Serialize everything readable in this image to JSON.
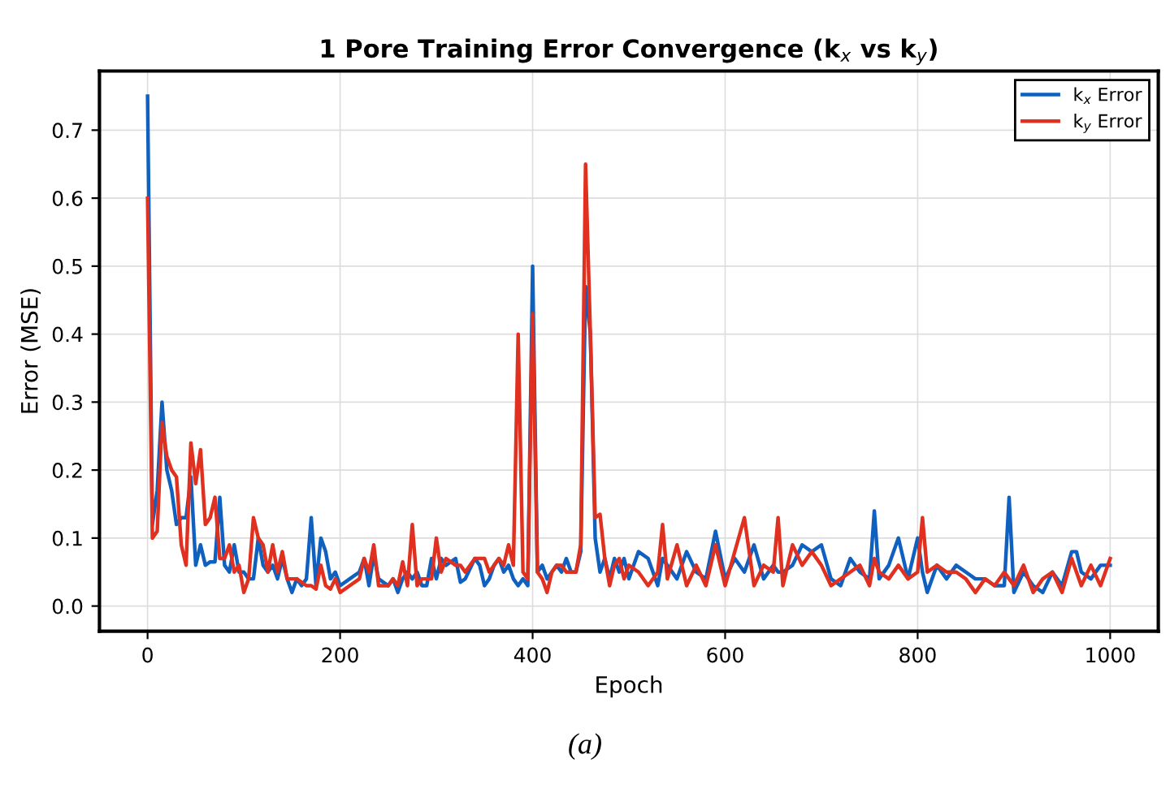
{
  "chart_data": {
    "type": "line",
    "title": "1 Pore Training Error Convergence (k$_{x}$ vs k$_{y}$)",
    "xlabel": "Epoch",
    "ylabel": "Error (MSE)",
    "annotations": [
      "(a)"
    ],
    "xlim": [
      -50,
      1050
    ],
    "xticks": [
      0,
      200,
      400,
      600,
      800,
      1000
    ],
    "ylim": [
      -0.037,
      0.787
    ],
    "yticks": [
      {
        "value": 0.0,
        "label": "0.0"
      },
      0.1,
      0.2,
      0.3,
      0.4,
      0.5,
      0.6,
      0.7
    ],
    "grid": true,
    "legend": "top right",
    "line_style": "solid",
    "x": [
      0,
      5,
      10,
      15,
      20,
      25,
      30,
      35,
      40,
      45,
      50,
      55,
      60,
      65,
      70,
      75,
      80,
      85,
      90,
      95,
      100,
      105,
      110,
      115,
      120,
      125,
      130,
      135,
      140,
      145,
      150,
      155,
      160,
      165,
      170,
      175,
      180,
      185,
      190,
      195,
      200,
      210,
      220,
      225,
      230,
      235,
      240,
      250,
      255,
      260,
      265,
      270,
      275,
      280,
      285,
      290,
      295,
      300,
      305,
      310,
      320,
      325,
      330,
      340,
      345,
      350,
      355,
      360,
      365,
      370,
      375,
      380,
      385,
      390,
      395,
      400,
      405,
      410,
      415,
      420,
      425,
      430,
      435,
      440,
      445,
      450,
      455,
      460,
      465,
      470,
      475,
      480,
      485,
      490,
      495,
      500,
      510,
      520,
      530,
      535,
      540,
      550,
      560,
      570,
      580,
      590,
      600,
      610,
      620,
      630,
      640,
      650,
      655,
      660,
      670,
      680,
      690,
      700,
      710,
      720,
      730,
      740,
      750,
      755,
      760,
      770,
      780,
      790,
      800,
      805,
      810,
      820,
      830,
      840,
      850,
      860,
      870,
      880,
      890,
      895,
      900,
      910,
      920,
      930,
      940,
      950,
      960,
      965,
      970,
      980,
      990,
      1000
    ],
    "series": [
      {
        "name": "k$_{x}$ Error",
        "color": "#1060c0",
        "values": [
          0.75,
          0.12,
          0.17,
          0.3,
          0.2,
          0.17,
          0.12,
          0.13,
          0.13,
          0.19,
          0.06,
          0.09,
          0.06,
          0.065,
          0.065,
          0.16,
          0.06,
          0.05,
          0.09,
          0.05,
          0.05,
          0.04,
          0.04,
          0.1,
          0.06,
          0.05,
          0.06,
          0.04,
          0.07,
          0.04,
          0.02,
          0.04,
          0.03,
          0.04,
          0.13,
          0.03,
          0.1,
          0.08,
          0.04,
          0.05,
          0.03,
          0.04,
          0.05,
          0.07,
          0.03,
          0.075,
          0.04,
          0.03,
          0.04,
          0.02,
          0.04,
          0.05,
          0.04,
          0.05,
          0.03,
          0.03,
          0.07,
          0.04,
          0.07,
          0.06,
          0.07,
          0.035,
          0.04,
          0.07,
          0.06,
          0.03,
          0.04,
          0.06,
          0.07,
          0.05,
          0.06,
          0.04,
          0.03,
          0.04,
          0.03,
          0.5,
          0.05,
          0.06,
          0.04,
          0.05,
          0.06,
          0.05,
          0.07,
          0.05,
          0.05,
          0.08,
          0.47,
          0.4,
          0.1,
          0.05,
          0.07,
          0.04,
          0.07,
          0.05,
          0.07,
          0.04,
          0.08,
          0.07,
          0.03,
          0.07,
          0.06,
          0.04,
          0.08,
          0.05,
          0.04,
          0.11,
          0.04,
          0.07,
          0.05,
          0.09,
          0.04,
          0.06,
          0.05,
          0.05,
          0.06,
          0.09,
          0.08,
          0.09,
          0.04,
          0.03,
          0.07,
          0.05,
          0.04,
          0.14,
          0.04,
          0.06,
          0.1,
          0.04,
          0.1,
          0.05,
          0.02,
          0.06,
          0.04,
          0.06,
          0.05,
          0.04,
          0.04,
          0.03,
          0.03,
          0.16,
          0.02,
          0.05,
          0.03,
          0.02,
          0.05,
          0.03,
          0.08,
          0.08,
          0.05,
          0.04,
          0.06,
          0.06
        ]
      },
      {
        "name": "k$_{y}$ Error",
        "color": "#e03020",
        "values": [
          0.6,
          0.1,
          0.11,
          0.27,
          0.22,
          0.2,
          0.19,
          0.09,
          0.06,
          0.24,
          0.18,
          0.23,
          0.12,
          0.13,
          0.16,
          0.07,
          0.07,
          0.09,
          0.05,
          0.06,
          0.02,
          0.04,
          0.13,
          0.1,
          0.09,
          0.05,
          0.09,
          0.05,
          0.08,
          0.04,
          0.04,
          0.04,
          0.035,
          0.03,
          0.03,
          0.025,
          0.06,
          0.03,
          0.025,
          0.04,
          0.02,
          0.03,
          0.04,
          0.07,
          0.05,
          0.09,
          0.03,
          0.03,
          0.04,
          0.03,
          0.065,
          0.03,
          0.12,
          0.03,
          0.04,
          0.04,
          0.04,
          0.1,
          0.05,
          0.07,
          0.06,
          0.06,
          0.05,
          0.07,
          0.07,
          0.07,
          0.05,
          0.06,
          0.07,
          0.06,
          0.09,
          0.06,
          0.4,
          0.05,
          0.04,
          0.43,
          0.05,
          0.04,
          0.02,
          0.05,
          0.06,
          0.06,
          0.05,
          0.05,
          0.05,
          0.09,
          0.65,
          0.4,
          0.13,
          0.135,
          0.07,
          0.03,
          0.06,
          0.07,
          0.04,
          0.06,
          0.05,
          0.03,
          0.05,
          0.12,
          0.04,
          0.09,
          0.03,
          0.06,
          0.03,
          0.09,
          0.03,
          0.08,
          0.13,
          0.03,
          0.06,
          0.05,
          0.13,
          0.03,
          0.09,
          0.06,
          0.08,
          0.06,
          0.03,
          0.04,
          0.05,
          0.06,
          0.03,
          0.07,
          0.05,
          0.04,
          0.06,
          0.04,
          0.05,
          0.13,
          0.05,
          0.06,
          0.05,
          0.05,
          0.04,
          0.02,
          0.04,
          0.03,
          0.05,
          0.04,
          0.03,
          0.06,
          0.02,
          0.04,
          0.05,
          0.02,
          0.07,
          0.05,
          0.03,
          0.06,
          0.03,
          0.07
        ]
      }
    ]
  }
}
